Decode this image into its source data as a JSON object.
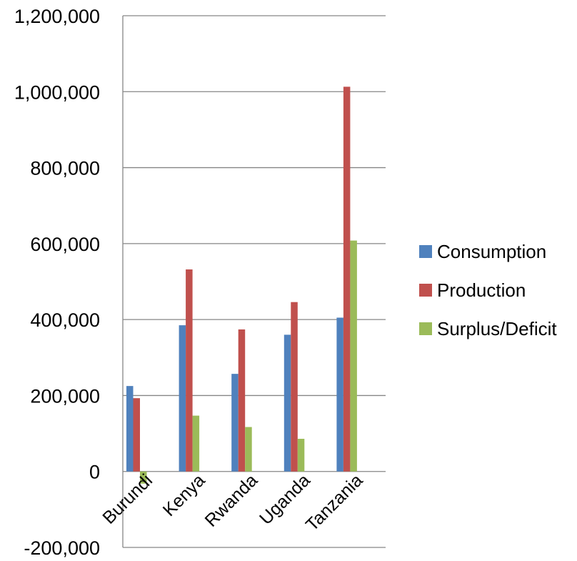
{
  "chart_data": {
    "type": "bar",
    "title": "",
    "xlabel": "",
    "ylabel": "",
    "categories": [
      "Burundi",
      "Kenya",
      "Rwanda",
      "Uganda",
      "Tanzania"
    ],
    "series": [
      {
        "name": "Consumption",
        "color": "#4F81BD",
        "values": [
          225000,
          385000,
          257000,
          360000,
          405000
        ]
      },
      {
        "name": "Production",
        "color": "#C0504D",
        "values": [
          193000,
          532000,
          374000,
          446000,
          1013000
        ]
      },
      {
        "name": "Surplus/Deficit",
        "color": "#9BBB59",
        "values": [
          -32000,
          147000,
          117000,
          86000,
          608000
        ]
      }
    ],
    "ylim": [
      -200000,
      1200000
    ],
    "yticks": [
      -200000,
      0,
      200000,
      400000,
      600000,
      800000,
      1000000,
      1200000
    ],
    "ytick_labels": [
      "-200,000",
      "0",
      "200,000",
      "400,000",
      "600,000",
      "800,000",
      "1,000,000",
      "1,200,000"
    ],
    "grid": true,
    "legend_position": "right"
  }
}
